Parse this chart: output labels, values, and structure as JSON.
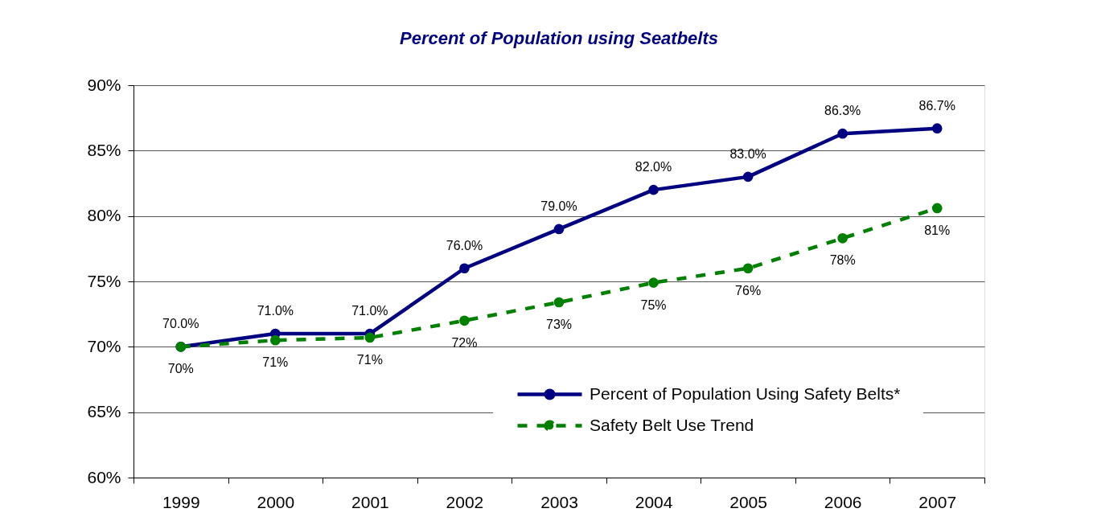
{
  "chart_data": {
    "type": "line",
    "title": "Percent of Population using Seatbelts",
    "categories": [
      "1999",
      "2000",
      "2001",
      "2002",
      "2003",
      "2004",
      "2005",
      "2006",
      "2007"
    ],
    "series": [
      {
        "name": "Percent of Population Using Safety Belts*",
        "color": "#000080",
        "line_style": "solid",
        "marker": "circle",
        "values": [
          70.0,
          71.0,
          71.0,
          76.0,
          79.0,
          82.0,
          83.0,
          86.3,
          86.7
        ],
        "value_labels": [
          "70.0%",
          "71.0%",
          "71.0%",
          "76.0%",
          "79.0%",
          "82.0%",
          "83.0%",
          "86.3%",
          "86.7%"
        ]
      },
      {
        "name": "Safety Belt Use Trend",
        "color": "#008000",
        "line_style": "dashed",
        "marker": "circle",
        "values": [
          70.0,
          70.5,
          70.7,
          72.0,
          73.4,
          74.9,
          76.0,
          78.3,
          80.6
        ],
        "value_labels": [
          "70%",
          "71%",
          "71%",
          "72%",
          "73%",
          "75%",
          "76%",
          "78%",
          "81%"
        ]
      }
    ],
    "ylim": [
      60,
      90
    ],
    "yticks": [
      {
        "value": 60,
        "label": "60%"
      },
      {
        "value": 65,
        "label": "65%"
      },
      {
        "value": 70,
        "label": "70%"
      },
      {
        "value": 75,
        "label": "75%"
      },
      {
        "value": 80,
        "label": "80%"
      },
      {
        "value": 85,
        "label": "85%"
      },
      {
        "value": 90,
        "label": "90%"
      }
    ],
    "grid": "y",
    "legend": "bottom right"
  }
}
